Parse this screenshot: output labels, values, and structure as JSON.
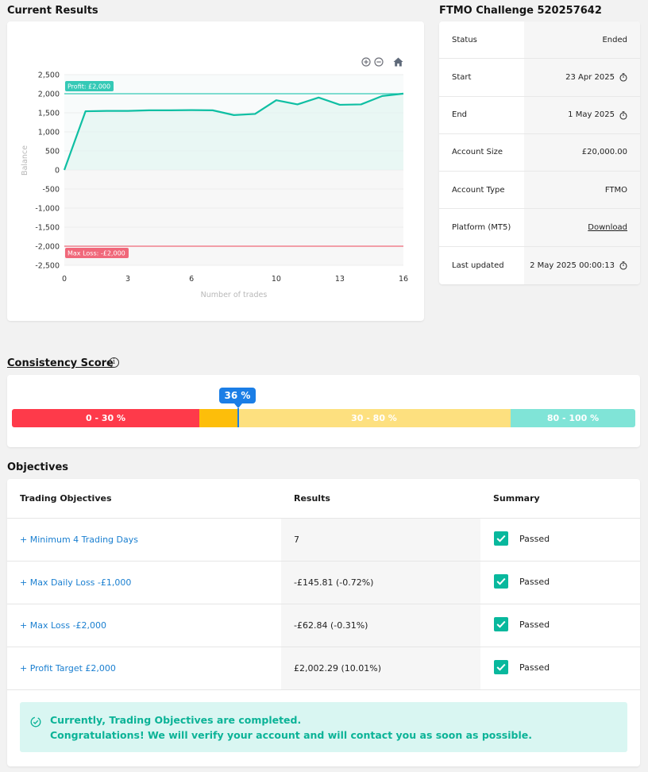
{
  "results": {
    "title": "Current Results"
  },
  "chart_data": {
    "type": "line",
    "ylabel": "Balance",
    "xlabel": "Number of trades",
    "y_ticks": [
      "2,500",
      "2,000",
      "1,500",
      "1,000",
      "500",
      "0",
      "-500",
      "-1,000",
      "-1,500",
      "-2,000",
      "-2,500"
    ],
    "x_ticks": [
      "0",
      "3",
      "6",
      "10",
      "13",
      "16"
    ],
    "x_tick_values": [
      0,
      3,
      6,
      10,
      13,
      16
    ],
    "ylim": [
      -2500,
      2500
    ],
    "xlim": [
      0,
      16
    ],
    "x": [
      0,
      1,
      2,
      3,
      4,
      5,
      6,
      7,
      8,
      9,
      10,
      11,
      12,
      13,
      14,
      15,
      16
    ],
    "series": [
      {
        "values": [
          0,
          1540,
          1550,
          1550,
          1565,
          1565,
          1570,
          1565,
          1440,
          1470,
          1830,
          1720,
          1900,
          1710,
          1720,
          1940,
          2002
        ]
      }
    ],
    "profit_line": {
      "value": 2000,
      "label": "Profit: £2,000",
      "color": "#35c9b6"
    },
    "loss_line": {
      "value": -2000,
      "label": "Max Loss: -£2,000",
      "color": "#f0687a"
    },
    "line_color": "#0fbfa3",
    "grid": true
  },
  "toolbar": {
    "zoom_in_icon": "zoom-in-icon",
    "zoom_out_icon": "zoom-out-icon",
    "home_icon": "home-icon"
  },
  "challenge": {
    "title": "FTMO Challenge 520257642",
    "rows": [
      {
        "label": "Status",
        "value": "Ended",
        "icon": ""
      },
      {
        "label": "Start",
        "value": "23 Apr 2025",
        "icon": "clock-icon"
      },
      {
        "label": "End",
        "value": "1 May 2025",
        "icon": "clock-icon"
      },
      {
        "label": "Account Size",
        "value": "£20,000.00",
        "icon": ""
      },
      {
        "label": "Account Type",
        "value": "FTMO",
        "icon": ""
      },
      {
        "label": "Platform (MT5)",
        "value": "Download",
        "icon": ""
      },
      {
        "label": "Last updated",
        "value": "2 May 2025 00:00:13",
        "icon": "clock-icon"
      }
    ]
  },
  "consistency": {
    "title": "Consistency Score",
    "score_label": "36 %",
    "score": 36,
    "segments": [
      {
        "label": "0 - 30 %",
        "color": "#fe3a4a"
      },
      {
        "label": "",
        "color": "#fdbe0a"
      },
      {
        "label": "30 - 80 %",
        "color": "#fde07f"
      },
      {
        "label": "80 - 100 %",
        "color": "#80e4d7"
      }
    ]
  },
  "objectives": {
    "title": "Objectives",
    "headers": {
      "objective": "Trading Objectives",
      "results": "Results",
      "summary": "Summary"
    },
    "rows": [
      {
        "name": "+ Minimum 4 Trading Days",
        "result": "7",
        "summary": "Passed"
      },
      {
        "name": "+ Max Daily Loss -£1,000",
        "result": "-£145.81 (-0.72%)",
        "summary": "Passed"
      },
      {
        "name": "+ Max Loss -£2,000",
        "result": "-£62.84 (-0.31%)",
        "summary": "Passed"
      },
      {
        "name": "+ Profit Target £2,000",
        "result": "£2,002.29 (10.01%)",
        "summary": "Passed"
      }
    ],
    "banner": {
      "line1": "Currently, Trading Objectives are completed.",
      "line2": "Congratulations! We will verify your account and will contact you as soon as possible."
    }
  }
}
